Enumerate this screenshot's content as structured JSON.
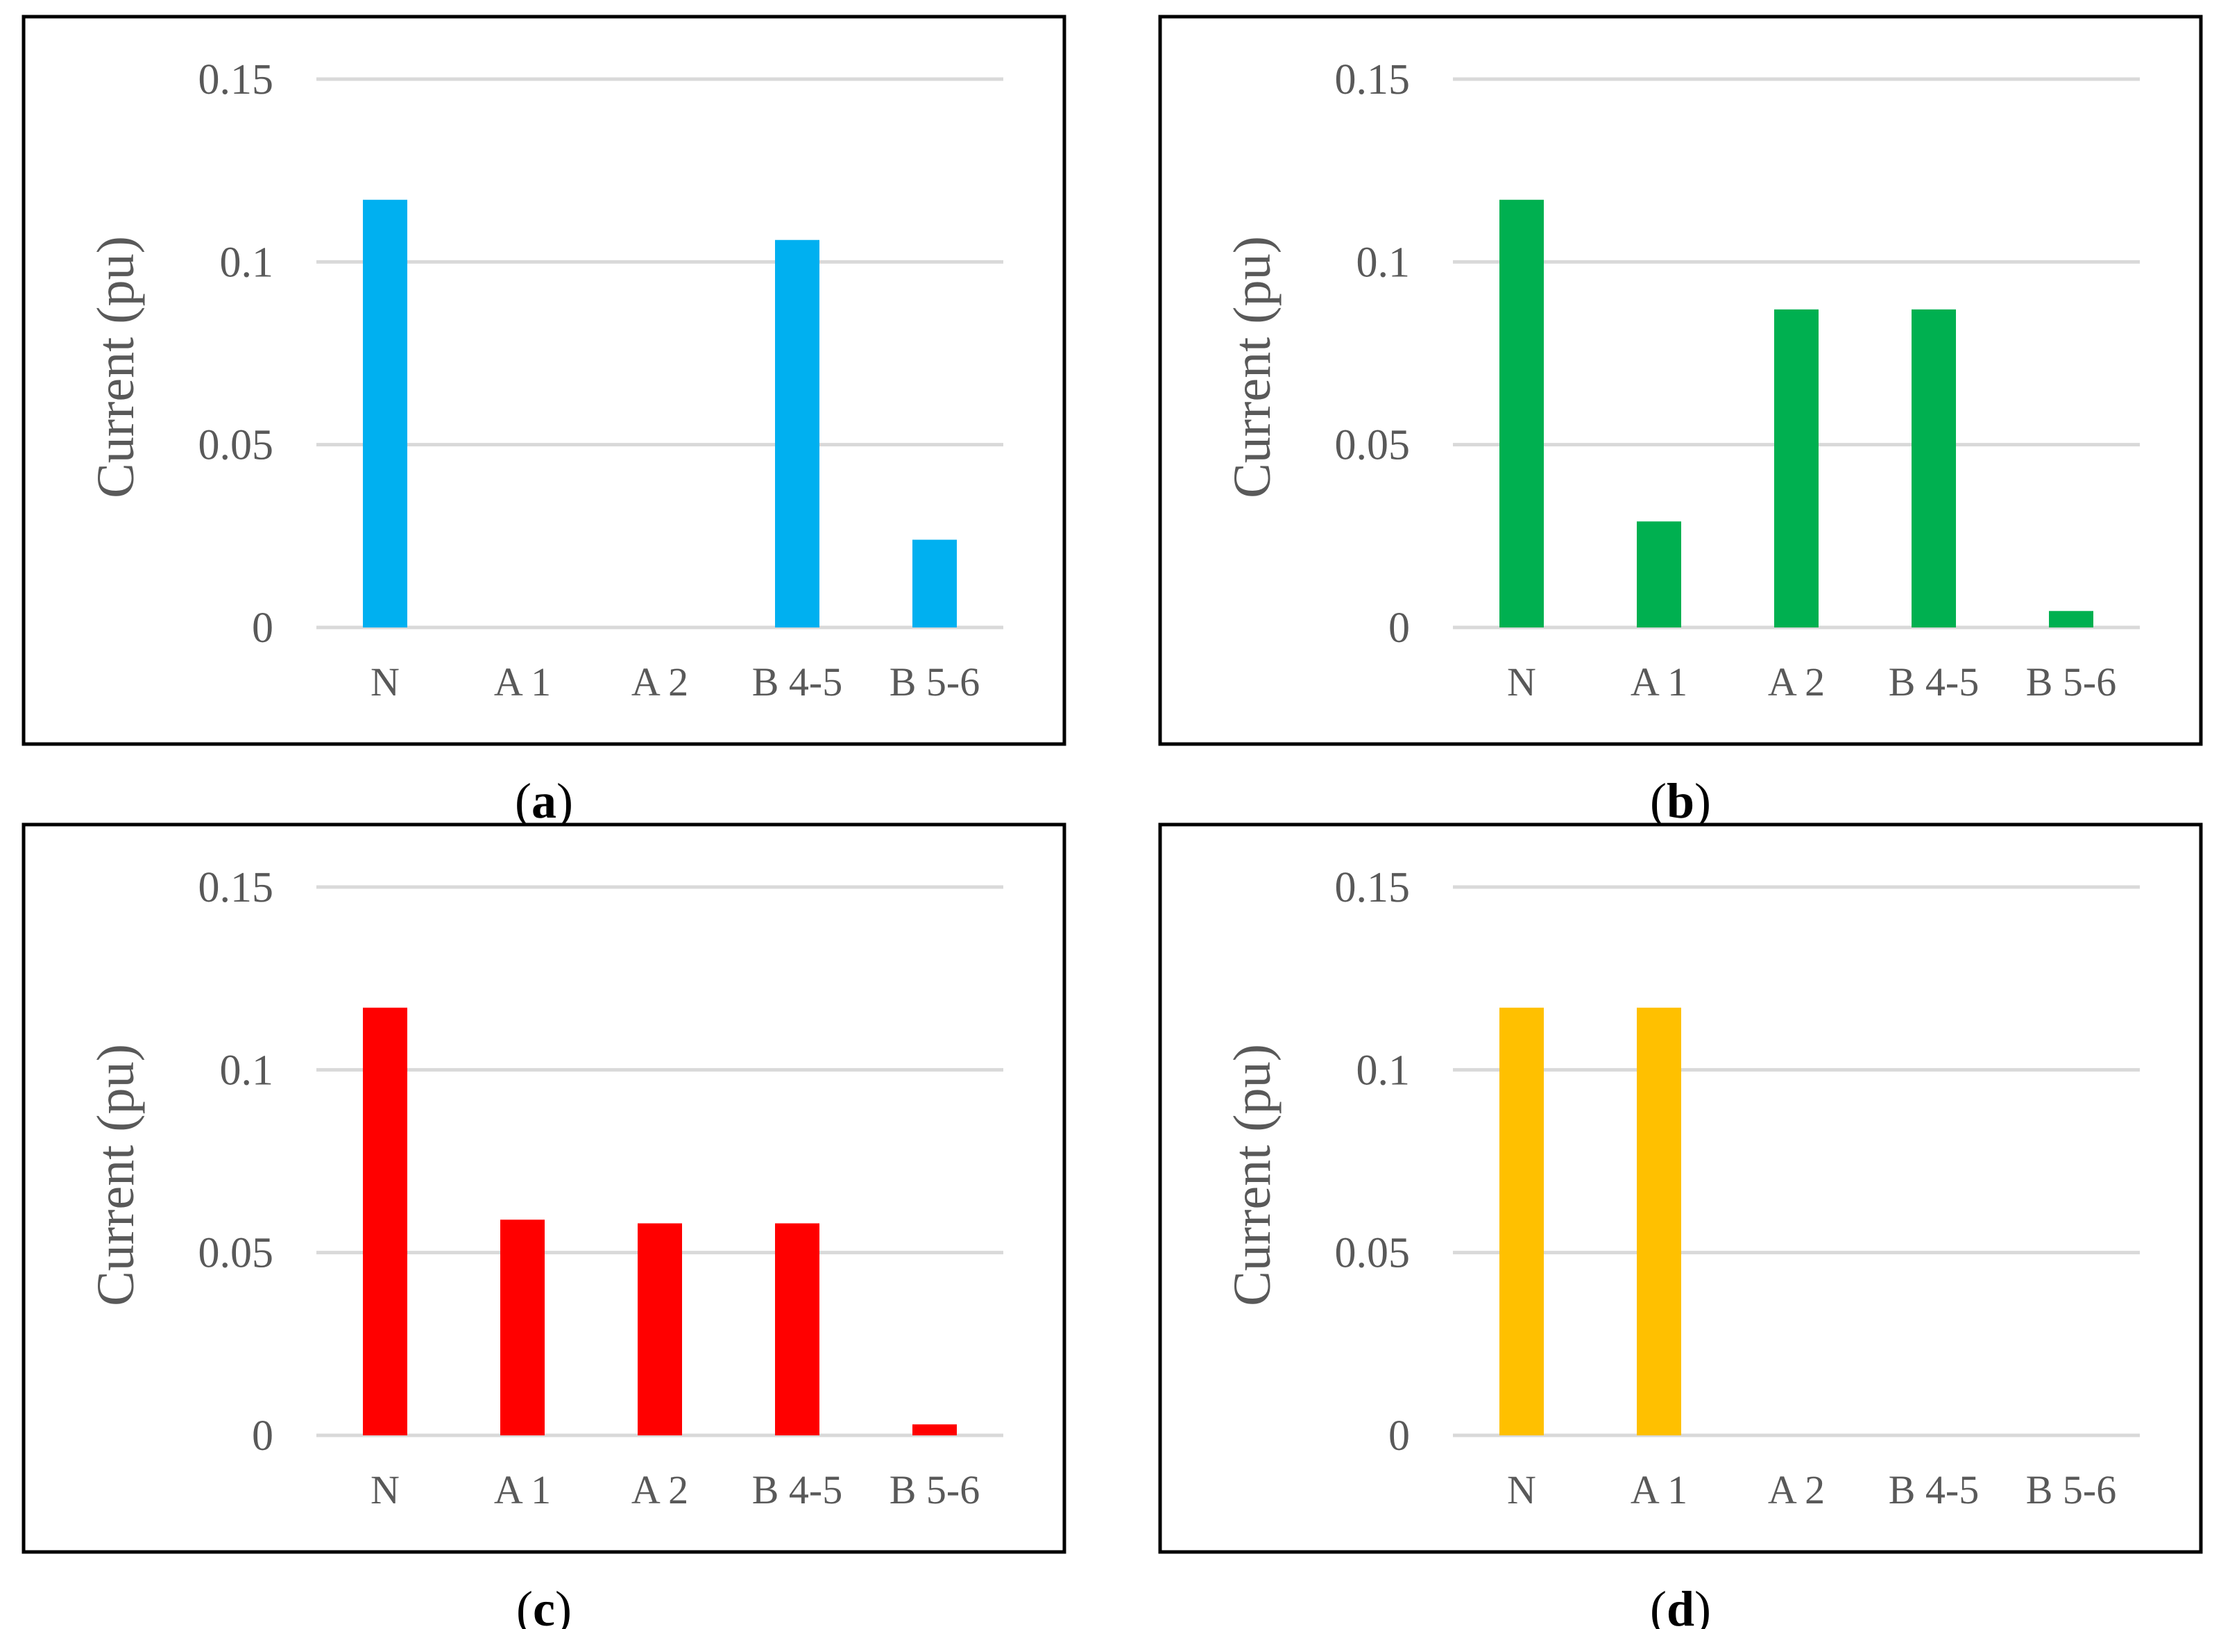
{
  "figure": {
    "panels": [
      {
        "caption_open": "(",
        "caption_letter": "a",
        "caption_close": ")",
        "color": "#00B0F0"
      },
      {
        "caption_open": "(",
        "caption_letter": "b",
        "caption_close": ")",
        "color": "#00B050"
      },
      {
        "caption_open": "(",
        "caption_letter": "c",
        "caption_close": ")",
        "color": "#FF0000"
      },
      {
        "caption_open": "(",
        "caption_letter": "d",
        "caption_close": ")",
        "color": "#FFC000"
      }
    ],
    "axis_color": "#D9D9D9",
    "text_color": "#595959"
  },
  "chart_data": [
    {
      "type": "bar",
      "panel": "a",
      "categories": [
        "N",
        "A 1",
        "A 2",
        "B 4-5",
        "B 5-6"
      ],
      "values": [
        0.117,
        0,
        0,
        0.106,
        0.024
      ],
      "ylabel": "Current (pu)",
      "ylim": [
        0,
        0.15
      ],
      "yticks": [
        0,
        0.05,
        0.1,
        0.15
      ],
      "ytick_labels": [
        "0",
        "0.05",
        "0.1",
        "0.15"
      ],
      "grid": true
    },
    {
      "type": "bar",
      "panel": "b",
      "categories": [
        "N",
        "A 1",
        "A 2",
        "B 4-5",
        "B 5-6"
      ],
      "values": [
        0.117,
        0.029,
        0.087,
        0.087,
        0.0045
      ],
      "ylabel": "Current (pu)",
      "ylim": [
        0,
        0.15
      ],
      "yticks": [
        0,
        0.05,
        0.1,
        0.15
      ],
      "ytick_labels": [
        "0",
        "0.05",
        "0.1",
        "0.15"
      ],
      "grid": true
    },
    {
      "type": "bar",
      "panel": "c",
      "categories": [
        "N",
        "A 1",
        "A 2",
        "B 4-5",
        "B 5-6"
      ],
      "values": [
        0.117,
        0.059,
        0.058,
        0.058,
        0.003
      ],
      "ylabel": "Current (pu)",
      "ylim": [
        0,
        0.15
      ],
      "yticks": [
        0,
        0.05,
        0.1,
        0.15
      ],
      "ytick_labels": [
        "0",
        "0.05",
        "0.1",
        "0.15"
      ],
      "grid": true
    },
    {
      "type": "bar",
      "panel": "d",
      "categories": [
        "N",
        "A 1",
        "A 2",
        "B 4-5",
        "B 5-6"
      ],
      "values": [
        0.117,
        0.117,
        0,
        0,
        0
      ],
      "ylabel": "Current (pu)",
      "ylim": [
        0,
        0.15
      ],
      "yticks": [
        0,
        0.05,
        0.1,
        0.15
      ],
      "ytick_labels": [
        "0",
        "0.05",
        "0.1",
        "0.15"
      ],
      "grid": true
    }
  ]
}
